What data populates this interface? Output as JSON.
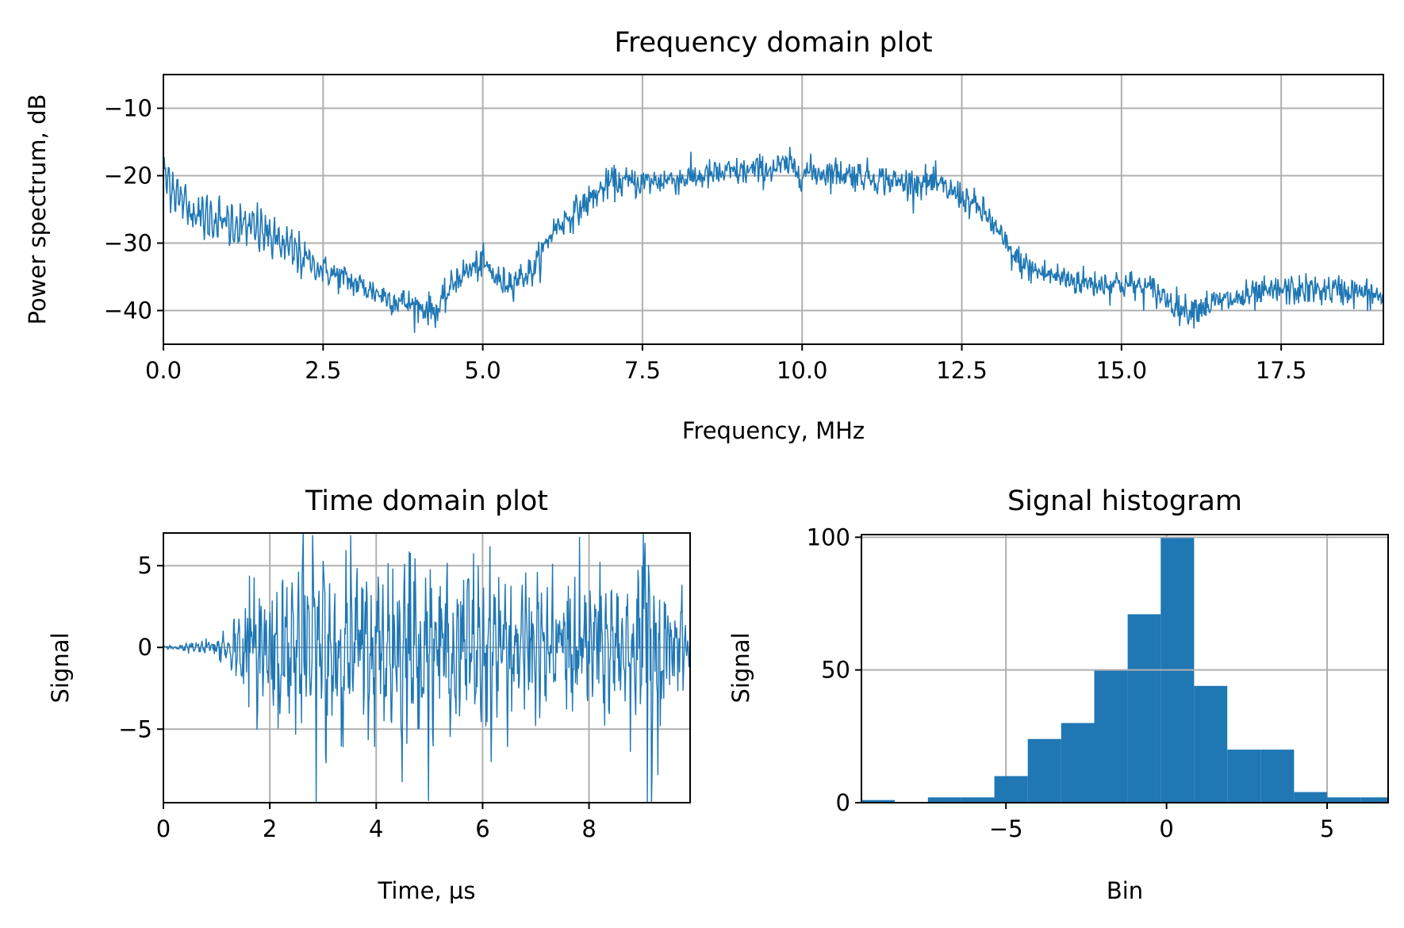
{
  "chart_data": [
    {
      "type": "line",
      "title": "Frequency domain plot",
      "xlabel": "Frequency, MHz",
      "ylabel": "Power spectrum, dB",
      "xlim": [
        0,
        19.1
      ],
      "ylim": [
        -45,
        -5
      ],
      "xticks": [
        0.0,
        2.5,
        5.0,
        7.5,
        10.0,
        12.5,
        15.0,
        17.5
      ],
      "xtick_labels": [
        "0.0",
        "2.5",
        "5.0",
        "7.5",
        "10.0",
        "12.5",
        "15.0",
        "17.5"
      ],
      "yticks": [
        -10,
        -20,
        -30,
        -40
      ],
      "ytick_labels": [
        "−10",
        "−20",
        "−30",
        "−40"
      ],
      "grid": true,
      "color": "#1f77b4",
      "envelope": {
        "x": [
          0.0,
          0.1,
          0.3,
          0.6,
          1.0,
          1.5,
          2.0,
          2.5,
          3.0,
          3.5,
          4.0,
          4.3,
          4.6,
          5.0,
          5.3,
          5.6,
          5.8,
          6.1,
          6.5,
          7.0,
          7.5,
          8.0,
          8.5,
          9.0,
          9.5,
          9.8,
          10.0,
          10.5,
          11.0,
          11.5,
          12.0,
          12.5,
          12.9,
          13.3,
          13.6,
          14.0,
          14.5,
          15.0,
          15.5,
          16.0,
          16.4,
          17.0,
          17.5,
          18.0,
          18.5,
          19.1
        ],
        "y": [
          -20,
          -21,
          -24,
          -26,
          -27,
          -28,
          -31,
          -34,
          -36,
          -38,
          -39.5,
          -40,
          -35,
          -33,
          -36,
          -35,
          -34,
          -28,
          -25,
          -21,
          -21,
          -20.5,
          -20,
          -19.5,
          -19,
          -18.5,
          -19.5,
          -19.5,
          -20,
          -21,
          -21,
          -23,
          -26,
          -32,
          -34,
          -35,
          -36,
          -36,
          -37,
          -40,
          -39,
          -38,
          -37,
          -37,
          -37,
          -38
        ]
      },
      "notes": "dense noisy spectrum; envelope approximates mean level"
    },
    {
      "type": "line",
      "title": "Time domain plot",
      "xlabel": "Time, µs",
      "ylabel": "Signal",
      "xlim": [
        0,
        9.9
      ],
      "ylim": [
        -9.5,
        7
      ],
      "xticks": [
        0,
        2,
        4,
        6,
        8
      ],
      "xtick_labels": [
        "0",
        "2",
        "4",
        "6",
        "8"
      ],
      "yticks": [
        5,
        0,
        -5
      ],
      "ytick_labels": [
        "5",
        "0",
        "−5"
      ],
      "grid": true,
      "color": "#1f77b4",
      "envelope": {
        "t": [
          0.0,
          0.7,
          1.0,
          1.4,
          1.6,
          2.0,
          2.5,
          3.0,
          3.5,
          4.0,
          4.5,
          5.0,
          5.5,
          6.0,
          6.5,
          7.0,
          7.5,
          8.0,
          8.5,
          9.0,
          9.1,
          9.5,
          9.9
        ],
        "amplitude": [
          0.05,
          0.3,
          0.6,
          1.5,
          3.0,
          3.5,
          3.8,
          4.5,
          3.8,
          4.0,
          4.2,
          3.6,
          3.5,
          3.6,
          3.5,
          3.3,
          3.2,
          3.3,
          3.0,
          3.5,
          7.5,
          2.5,
          2.0
        ]
      },
      "spikes": [
        {
          "t": 3.0,
          "y": 5.3
        },
        {
          "t": 3.05,
          "y": -6.5
        },
        {
          "t": 9.05,
          "y": 6.4
        },
        {
          "t": 9.1,
          "y": -9.5
        }
      ]
    },
    {
      "type": "bar",
      "title": "Signal histogram",
      "xlabel": "Bin",
      "ylabel": "Signal",
      "xlim": [
        -9.5,
        6.9
      ],
      "ylim": [
        0,
        101
      ],
      "xticks": [
        -5,
        0,
        5
      ],
      "xtick_labels": [
        "−5",
        "0",
        "5"
      ],
      "yticks": [
        0,
        50,
        100
      ],
      "ytick_labels": [
        "0",
        "50",
        "100"
      ],
      "grid": true,
      "color": "#1f77b4",
      "bin_edges": [
        -9.5,
        -8.46,
        -7.43,
        -6.39,
        -5.36,
        -4.32,
        -3.28,
        -2.25,
        -1.21,
        -0.18,
        0.86,
        1.89,
        2.93,
        3.97,
        5.0,
        6.04,
        6.9
      ],
      "counts": [
        1,
        0,
        2,
        2,
        10,
        24,
        30,
        50,
        71,
        100,
        44,
        20,
        20,
        4,
        2,
        2
      ]
    }
  ]
}
